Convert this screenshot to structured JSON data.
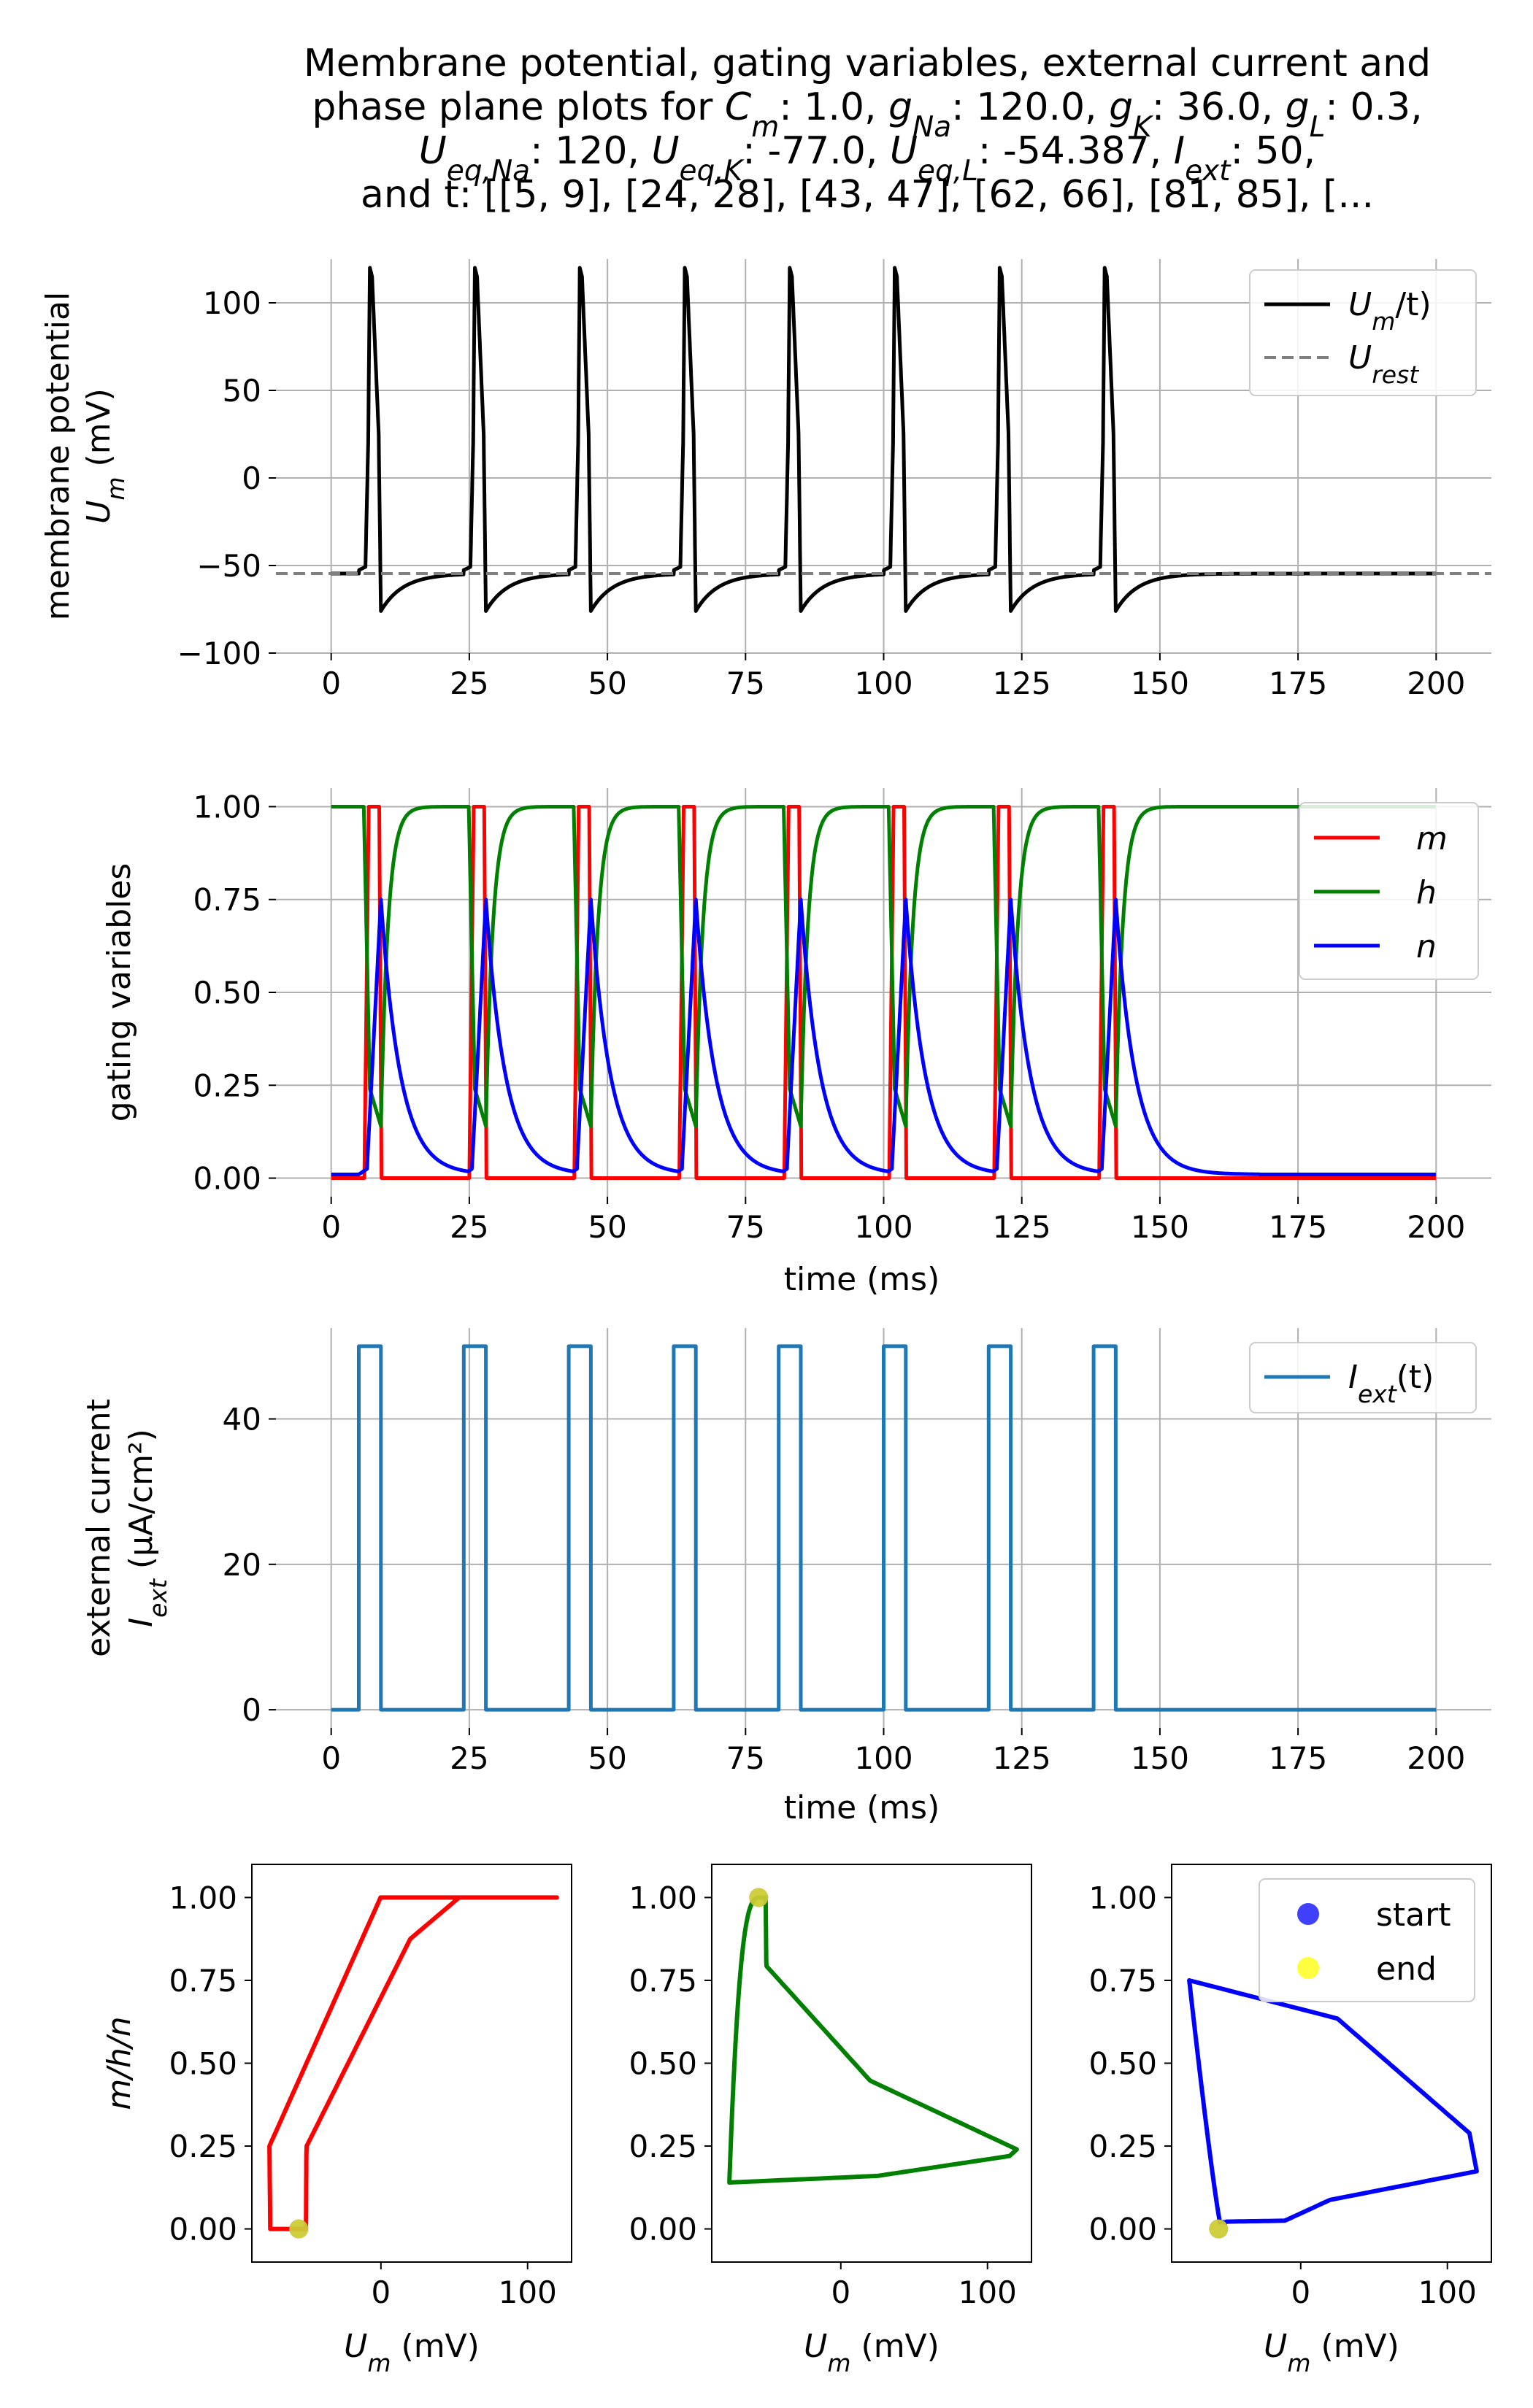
{
  "title_lines": [
    "Membrane potential, gating variables, external current and",
    "phase plane plots for C_m: 1.0, g_Na: 120.0, g_K: 36.0, g_L: 0.3,",
    "U_eq,Na: 120, U_eq,K: -77.0, U_eq,L: -54.387, I_ext: 50,",
    "and t: [[5, 9], [24, 28], [43, 47], [62, 66], [81, 85], [..."
  ],
  "chart_data": [
    {
      "id": "membrane",
      "type": "line",
      "ylabel_line1": "membrane potential",
      "ylabel_line2": "U_m (mV)",
      "xlabel": "",
      "xlim": [
        -10,
        210
      ],
      "ylim": [
        -100,
        125
      ],
      "xticks": [
        0,
        25,
        50,
        75,
        100,
        125,
        150,
        175,
        200
      ],
      "yticks": [
        -100,
        -50,
        0,
        50,
        100
      ],
      "pulses": [
        [
          5,
          9
        ],
        [
          24,
          28
        ],
        [
          43,
          47
        ],
        [
          62,
          66
        ],
        [
          81,
          85
        ],
        [
          100,
          104
        ],
        [
          119,
          123
        ],
        [
          138,
          142
        ]
      ],
      "spike_peak_mV": 120,
      "resting_potential_mV": -54.6,
      "afterhyperpolarization_mV": -76,
      "legend": [
        "U_m/t)",
        "U_rest"
      ],
      "series": [
        {
          "name": "U_m/t)",
          "color": "#000000"
        },
        {
          "name": "U_rest",
          "color": "#808080",
          "value": -54.6,
          "style": "dashed"
        }
      ]
    },
    {
      "id": "gating",
      "type": "line",
      "ylabel": "gating variables",
      "xlabel": "time (ms)",
      "xlim": [
        -10,
        210
      ],
      "ylim": [
        -0.05,
        1.05
      ],
      "xticks": [
        0,
        25,
        50,
        75,
        100,
        125,
        150,
        175,
        200
      ],
      "yticks": [
        "0.00",
        "0.25",
        "0.50",
        "0.75",
        "1.00"
      ],
      "legend": [
        "m",
        "h",
        "n"
      ],
      "series": [
        {
          "name": "m",
          "color": "#ff0000",
          "rest": 0.0,
          "peak": 1.0
        },
        {
          "name": "h",
          "color": "#008000",
          "rest": 1.0,
          "trough": 0.14
        },
        {
          "name": "n",
          "color": "#0000ff",
          "rest": 0.0,
          "peak": 0.75
        }
      ]
    },
    {
      "id": "current",
      "type": "line",
      "ylabel_line1": "external current",
      "ylabel_line2": "I_ext (μA/cm²)",
      "xlabel": "time (ms)",
      "xlim": [
        -10,
        210
      ],
      "ylim": [
        -2.5,
        52.5
      ],
      "xticks": [
        0,
        25,
        50,
        75,
        100,
        125,
        150,
        175,
        200
      ],
      "yticks": [
        0,
        20,
        40
      ],
      "amplitude": 50,
      "legend": [
        "I_ext(t)"
      ],
      "series": [
        {
          "name": "I_ext(t)",
          "color": "#1f77b4"
        }
      ]
    },
    {
      "id": "phase",
      "type": "line",
      "ylabel": "m/h/n",
      "xlabel": "U_m (mV)",
      "xlim": [
        -88,
        130
      ],
      "ylim": [
        -0.1,
        1.1
      ],
      "xticks": [
        0,
        100
      ],
      "yticks": [
        "0.00",
        "0.25",
        "0.50",
        "0.75",
        "1.00"
      ],
      "legend": [
        "start",
        "end"
      ],
      "start_marker": {
        "color": "#0000ff"
      },
      "end_marker": {
        "color": "#ffff00"
      },
      "panels": [
        {
          "name": "m",
          "color": "#ff0000",
          "start": [
            -56,
            0.0
          ],
          "end": [
            -56,
            0.0
          ]
        },
        {
          "name": "h",
          "color": "#008000",
          "start": [
            -56,
            1.0
          ],
          "end": [
            -56,
            1.0
          ]
        },
        {
          "name": "n",
          "color": "#0000ff",
          "start": [
            -56,
            0.0
          ],
          "end": [
            -56,
            0.0
          ]
        }
      ]
    }
  ]
}
